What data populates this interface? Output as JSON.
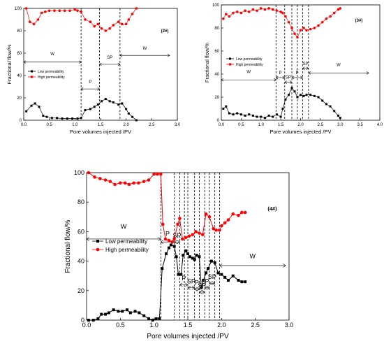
{
  "chart_data": [
    {
      "id": "c2",
      "type": "line",
      "title": "",
      "xlabel": "Pore volumes injected /PV",
      "ylabel": "Fractional flow/%",
      "annotation": "(2#)",
      "xlim": [
        0,
        3.0
      ],
      "ylim": [
        0,
        100
      ],
      "xticks": [
        "0.0",
        "0.5",
        "1.0",
        "1.5",
        "2.0",
        "2.5",
        "3.0"
      ],
      "yticks": [
        "0",
        "20",
        "40",
        "60",
        "80",
        "100"
      ],
      "legend": "mid-left",
      "series": [
        {
          "name": "Low  permeability",
          "color": "#000000",
          "marker": "square",
          "x": [
            0.05,
            0.15,
            0.22,
            0.3,
            0.38,
            0.45,
            0.55,
            0.65,
            0.75,
            0.85,
            0.95,
            1.05,
            1.12,
            1.2,
            1.3,
            1.38,
            1.45,
            1.52,
            1.6,
            1.68,
            1.75,
            1.85,
            1.92,
            2.0,
            2.05,
            2.12,
            2.2
          ],
          "y": [
            8,
            13,
            15,
            12,
            4,
            3,
            2,
            2,
            1.5,
            1.5,
            1.5,
            1.5,
            2,
            9,
            10,
            12,
            14,
            17,
            19,
            17,
            16,
            14,
            15,
            10,
            6,
            3,
            0
          ]
        },
        {
          "name": "High permeability",
          "color": "#ff0000",
          "marker": "circle",
          "x": [
            0.05,
            0.12,
            0.2,
            0.28,
            0.35,
            0.42,
            0.5,
            0.6,
            0.7,
            0.8,
            0.9,
            1.0,
            1.05,
            1.12,
            1.2,
            1.3,
            1.38,
            1.45,
            1.52,
            1.6,
            1.68,
            1.75,
            1.85,
            1.92,
            2.0,
            2.05,
            2.12,
            2.2
          ],
          "y": [
            100,
            88,
            86,
            90,
            96,
            97,
            98,
            98,
            98,
            98,
            98,
            99,
            98,
            97,
            90,
            88,
            84,
            86,
            82,
            80,
            82,
            85,
            88,
            86,
            86,
            90,
            95,
            100
          ]
        }
      ],
      "vlines": [
        1.12,
        1.48,
        1.88
      ],
      "regions": [
        {
          "label": "W",
          "x0": 0.0,
          "x1": 1.12,
          "y": 52,
          "ly": 58
        },
        {
          "label": "P",
          "x0": 1.12,
          "x1": 1.48,
          "y": 28,
          "ly": 33
        },
        {
          "label": "SP",
          "x0": 1.48,
          "x1": 1.88,
          "y": 50,
          "ly": 55
        },
        {
          "label": "W",
          "x0": 1.88,
          "x1": 2.85,
          "y": 58,
          "ly": 63
        }
      ]
    },
    {
      "id": "c3",
      "type": "line",
      "title": "",
      "xlabel": "Pore volumes injected /PV",
      "ylabel": "Fractional flow/%",
      "annotation": "(3#)",
      "xlim": [
        0,
        4.0
      ],
      "ylim": [
        0,
        100
      ],
      "xticks": [
        "0.0",
        "0.5",
        "1.0",
        "1.5",
        "2.0",
        "2.5",
        "3.0",
        "3.5",
        "4.0"
      ],
      "yticks": [
        "0",
        "20",
        "40",
        "60",
        "80",
        "100"
      ],
      "legend": "upper-left",
      "series": [
        {
          "name": "Low permeability",
          "color": "#000000",
          "marker": "square",
          "x": [
            0.05,
            0.12,
            0.2,
            0.3,
            0.4,
            0.5,
            0.6,
            0.7,
            0.8,
            0.9,
            1.0,
            1.1,
            1.2,
            1.3,
            1.4,
            1.5,
            1.55,
            1.62,
            1.7,
            1.78,
            1.85,
            1.92,
            2.0,
            2.08,
            2.15,
            2.25,
            2.35,
            2.45,
            2.55,
            2.65,
            2.75,
            2.85,
            2.95,
            3.0
          ],
          "y": [
            10,
            12,
            6,
            5,
            6,
            5,
            4,
            5,
            4,
            3,
            3,
            2,
            4,
            3,
            5,
            3,
            10,
            18,
            22,
            28,
            25,
            20,
            22,
            21,
            22,
            22,
            21,
            20,
            17,
            14,
            12,
            8,
            4,
            2
          ]
        },
        {
          "name": "High permeability",
          "color": "#ff0000",
          "marker": "circle",
          "x": [
            0.05,
            0.12,
            0.2,
            0.3,
            0.4,
            0.5,
            0.6,
            0.7,
            0.8,
            0.9,
            1.0,
            1.1,
            1.2,
            1.3,
            1.4,
            1.5,
            1.55,
            1.62,
            1.7,
            1.78,
            1.85,
            1.92,
            2.0,
            2.08,
            2.15,
            2.25,
            2.35,
            2.45,
            2.55,
            2.65,
            2.75,
            2.85,
            2.95,
            3.0
          ],
          "y": [
            88,
            92,
            90,
            93,
            94,
            93,
            95,
            94,
            96,
            95,
            97,
            96,
            97,
            96,
            95,
            94,
            93,
            90,
            85,
            80,
            75,
            72,
            78,
            80,
            78,
            79,
            80,
            82,
            85,
            88,
            90,
            93,
            96,
            97
          ]
        }
      ],
      "vlines": [
        1.38,
        1.6,
        1.78,
        1.92,
        2.05,
        2.2
      ],
      "regions": [
        {
          "label": "W",
          "x0": 0.0,
          "x1": 1.38,
          "y": 35,
          "ly": 41
        },
        {
          "label": "P",
          "x0": 1.38,
          "x1": 1.6,
          "y": 37,
          "ly": 40
        },
        {
          "label": "SP",
          "x0": 1.6,
          "x1": 1.78,
          "y": 33,
          "ly": 36
        },
        {
          "label": "P",
          "x0": 1.78,
          "x1": 2.05,
          "y": 37,
          "ly": 40
        },
        {
          "label": "SP",
          "x0": 2.05,
          "x1": 2.2,
          "y": 45,
          "ly": 48
        },
        {
          "label": "W",
          "x0": 2.2,
          "x1": 3.72,
          "y": 41,
          "ly": 47
        }
      ]
    },
    {
      "id": "c4",
      "type": "line",
      "title": "",
      "xlabel": "Pore volumes injected /PV",
      "ylabel": "Fractional flow/%",
      "annotation": "(4#)",
      "xlim": [
        0,
        3.0
      ],
      "ylim": [
        0,
        100
      ],
      "xticks": [
        "0.0",
        "0.5",
        "1.0",
        "1.5",
        "2.0",
        "2.5",
        "3.0"
      ],
      "yticks": [
        "0",
        "20",
        "40",
        "60",
        "80",
        "100"
      ],
      "legend": "mid-left",
      "series": [
        {
          "name": "Low  permeability",
          "color": "#000000",
          "marker": "square",
          "x": [
            0.03,
            0.1,
            0.17,
            0.22,
            0.28,
            0.33,
            0.4,
            0.47,
            0.53,
            0.6,
            0.65,
            0.72,
            0.78,
            0.85,
            0.92,
            0.98,
            1.03,
            1.08,
            1.12,
            1.18,
            1.22,
            1.25,
            1.3,
            1.33,
            1.36,
            1.4,
            1.43,
            1.47,
            1.5,
            1.53,
            1.57,
            1.6,
            1.63,
            1.67,
            1.7,
            1.73,
            1.77,
            1.8,
            1.85,
            1.9,
            1.95,
            2.0,
            2.05,
            2.1,
            2.17,
            2.25,
            2.3,
            2.35
          ],
          "y": [
            0,
            0,
            1,
            4,
            4,
            5,
            7,
            6,
            6,
            7,
            5,
            6,
            5,
            3,
            1,
            0,
            1,
            1,
            35,
            45,
            49,
            51,
            50,
            43,
            31,
            31,
            44,
            47,
            45,
            43,
            42,
            41,
            44,
            43,
            22,
            27,
            32,
            35,
            40,
            39,
            32,
            31,
            29,
            27,
            30,
            27,
            26,
            26
          ]
        },
        {
          "name": "High permeability",
          "color": "#ff0000",
          "marker": "circle",
          "x": [
            0.03,
            0.12,
            0.2,
            0.28,
            0.35,
            0.42,
            0.5,
            0.57,
            0.63,
            0.7,
            0.77,
            0.85,
            0.92,
            1.0,
            1.05,
            1.1,
            1.13,
            1.17,
            1.22,
            1.27,
            1.3,
            1.35,
            1.38,
            1.42,
            1.47,
            1.52,
            1.57,
            1.62,
            1.67,
            1.72,
            1.77,
            1.82,
            1.88,
            1.92,
            1.97,
            2.0,
            2.05,
            2.1,
            2.17,
            2.25,
            2.3,
            2.35
          ],
          "y": [
            100,
            97,
            96,
            95,
            94,
            92,
            93,
            93,
            92,
            93,
            93,
            94,
            95,
            99,
            99,
            99,
            65,
            55,
            54,
            53,
            55,
            65,
            69,
            55,
            56,
            57,
            58,
            60,
            59,
            58,
            72,
            70,
            62,
            61,
            61,
            64,
            66,
            68,
            72,
            71,
            73,
            73
          ]
        }
      ],
      "vlines": [
        1.1,
        1.3,
        1.38,
        1.45,
        1.5,
        1.6,
        1.67,
        1.75,
        1.82,
        1.9,
        1.97
      ],
      "regions": [
        {
          "label": "W",
          "x0": 0.0,
          "x1": 1.1,
          "y": 55,
          "ly": 62
        },
        {
          "label": "P",
          "x0": 1.1,
          "x1": 1.3,
          "y": 53,
          "ly": 57
        },
        {
          "label": "SP",
          "x0": 1.3,
          "x1": 1.38,
          "y": 53,
          "ly": 56
        },
        {
          "label": "P",
          "x0": 1.38,
          "x1": 1.5,
          "y": 24,
          "ly": 27
        },
        {
          "label": "SP",
          "x0": 1.5,
          "x1": 1.6,
          "y": 22,
          "ly": 25
        },
        {
          "label": "P",
          "x0": 1.6,
          "x1": 1.67,
          "y": 21,
          "ly": 24
        },
        {
          "label": "SP",
          "x0": 1.67,
          "x1": 1.75,
          "y": 19,
          "ly": 22
        },
        {
          "label": "P",
          "x0": 1.75,
          "x1": 1.82,
          "y": 22,
          "ly": 25
        },
        {
          "label": "SP",
          "x0": 1.82,
          "x1": 1.9,
          "y": 25,
          "ly": 28
        },
        {
          "label": "W",
          "x0": 1.97,
          "x1": 2.95,
          "y": 37,
          "ly": 42
        }
      ]
    }
  ]
}
